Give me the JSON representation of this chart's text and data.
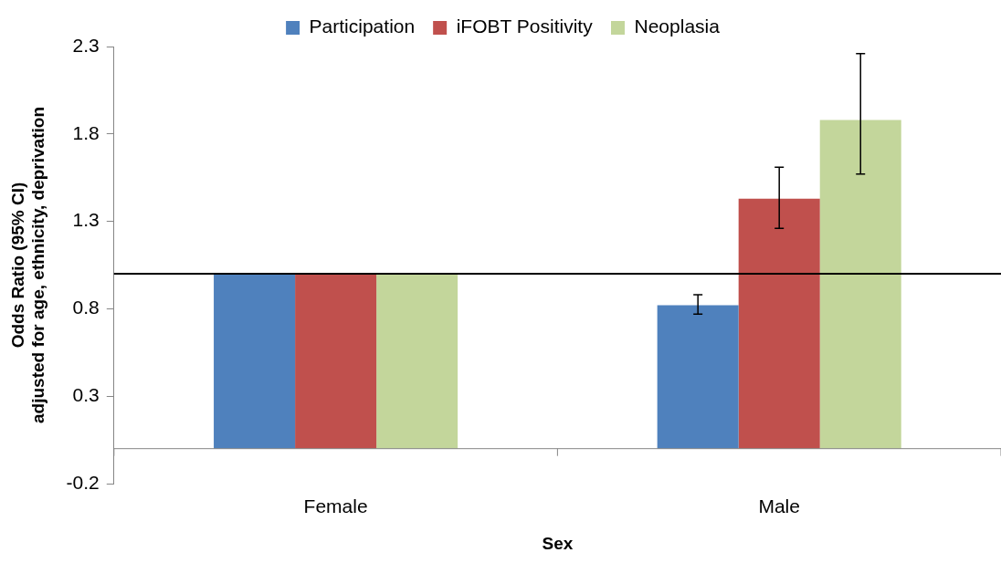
{
  "chart_data": {
    "type": "bar",
    "categories": [
      "Female",
      "Male"
    ],
    "series": [
      {
        "name": "Participation",
        "color": "#4f81bd",
        "values": [
          1.0,
          0.82
        ],
        "errors": [
          null,
          [
            0.77,
            0.88
          ]
        ]
      },
      {
        "name": "iFOBT Positivity",
        "color": "#c0504d",
        "values": [
          1.0,
          1.43
        ],
        "errors": [
          null,
          [
            1.26,
            1.61
          ]
        ]
      },
      {
        "name": "Neoplasia",
        "color": "#c3d69b",
        "values": [
          1.0,
          1.88
        ],
        "errors": [
          null,
          [
            1.57,
            2.26
          ]
        ]
      }
    ],
    "xlabel": "Sex",
    "ylabel": "Odds Ratio (95% CI)\nadjusted for age, ethnicity, deprivation",
    "ylim": [
      -0.2,
      2.3
    ],
    "yticks": [
      -0.2,
      0.3,
      0.8,
      1.3,
      1.8,
      2.3
    ],
    "ref_lines": [
      {
        "axis": "y",
        "value": 1.0,
        "color": "#000000"
      }
    ],
    "legend": "top"
  }
}
